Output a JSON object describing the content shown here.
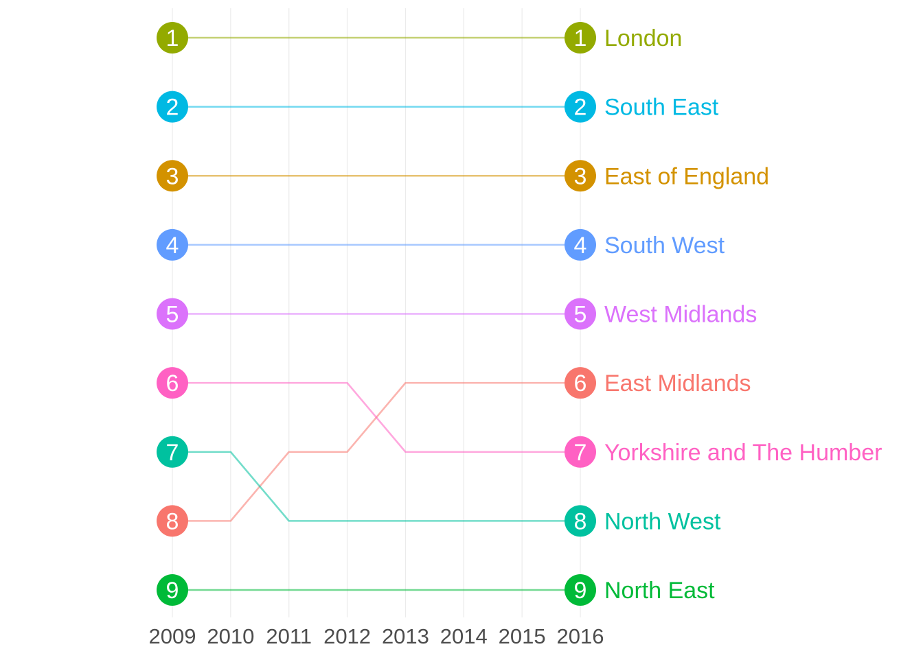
{
  "chart_data": {
    "type": "line",
    "title": "",
    "xlabel": "",
    "ylabel": "",
    "x": [
      2009,
      2010,
      2011,
      2012,
      2013,
      2014,
      2015,
      2016
    ],
    "x_tick_labels": [
      "2009",
      "2010",
      "2011",
      "2012",
      "2013",
      "2014",
      "2015",
      "2016"
    ],
    "ylim": [
      9,
      1
    ],
    "y_reversed": true,
    "grid": "vertical major gridlines only",
    "legend": "none; series names labeled at right end of each line",
    "point_markers": "circles with rank number at first and last year only",
    "series": [
      {
        "name": "London",
        "color": "#93AA00",
        "values": [
          1,
          1,
          1,
          1,
          1,
          1,
          1,
          1
        ],
        "start_label": "1",
        "end_label": "1"
      },
      {
        "name": "South East",
        "color": "#00B9E3",
        "values": [
          2,
          2,
          2,
          2,
          2,
          2,
          2,
          2
        ],
        "start_label": "2",
        "end_label": "2"
      },
      {
        "name": "East of England",
        "color": "#D39200",
        "values": [
          3,
          3,
          3,
          3,
          3,
          3,
          3,
          3
        ],
        "start_label": "3",
        "end_label": "3"
      },
      {
        "name": "South West",
        "color": "#619CFF",
        "values": [
          4,
          4,
          4,
          4,
          4,
          4,
          4,
          4
        ],
        "start_label": "4",
        "end_label": "4"
      },
      {
        "name": "West Midlands",
        "color": "#DB72FB",
        "values": [
          5,
          5,
          5,
          5,
          5,
          5,
          5,
          5
        ],
        "start_label": "5",
        "end_label": "5"
      },
      {
        "name": "East Midlands",
        "color": "#F8766D",
        "values": [
          8,
          8,
          7,
          7,
          6,
          6,
          6,
          6
        ],
        "start_label": "8",
        "end_label": "6"
      },
      {
        "name": "Yorkshire and The Humber",
        "color": "#FF61C3",
        "values": [
          6,
          6,
          6,
          6,
          7,
          7,
          7,
          7
        ],
        "start_label": "6",
        "end_label": "7"
      },
      {
        "name": "North West",
        "color": "#00C19F",
        "values": [
          7,
          7,
          8,
          8,
          8,
          8,
          8,
          8
        ],
        "start_label": "7",
        "end_label": "8"
      },
      {
        "name": "North East",
        "color": "#00BA38",
        "values": [
          9,
          9,
          9,
          9,
          9,
          9,
          9,
          9
        ],
        "start_label": "9",
        "end_label": "9"
      }
    ]
  }
}
